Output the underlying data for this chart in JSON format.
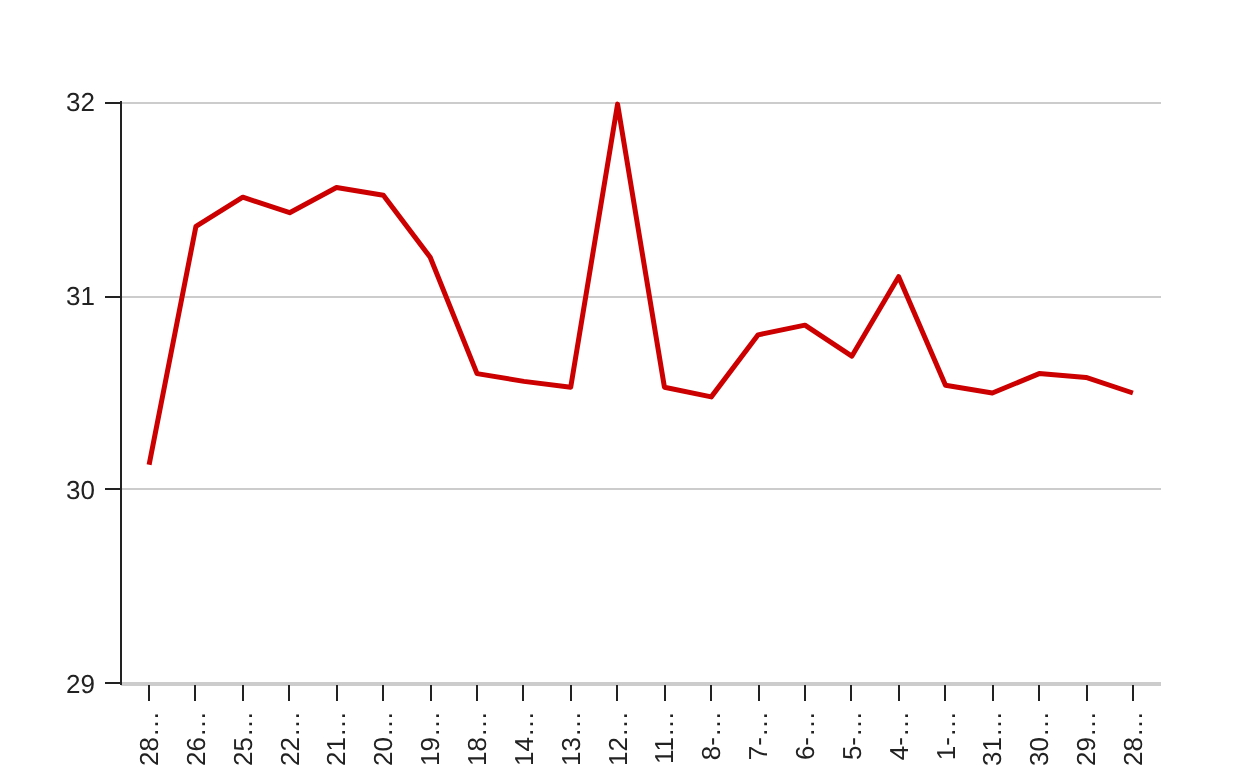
{
  "chart_data": {
    "type": "line",
    "categories": [
      "28…",
      "26…",
      "25…",
      "22…",
      "21…",
      "20…",
      "19…",
      "18…",
      "14…",
      "13…",
      "12…",
      "11…",
      "8-…",
      "7-…",
      "6-…",
      "5-…",
      "4-…",
      "1-…",
      "31…",
      "30…",
      "29…",
      "28…"
    ],
    "series": [
      {
        "color": "#cc0000",
        "values": [
          30.13,
          31.36,
          31.51,
          31.43,
          31.56,
          31.52,
          31.2,
          30.6,
          30.56,
          30.53,
          31.99,
          30.53,
          30.48,
          30.8,
          30.85,
          30.69,
          31.1,
          30.54,
          30.5,
          30.6,
          30.58,
          30.5
        ]
      }
    ],
    "ylim": [
      29,
      32
    ],
    "yticks": [
      29,
      30,
      31,
      32
    ],
    "grid": "y",
    "marker": "none",
    "line_style": "solid"
  }
}
